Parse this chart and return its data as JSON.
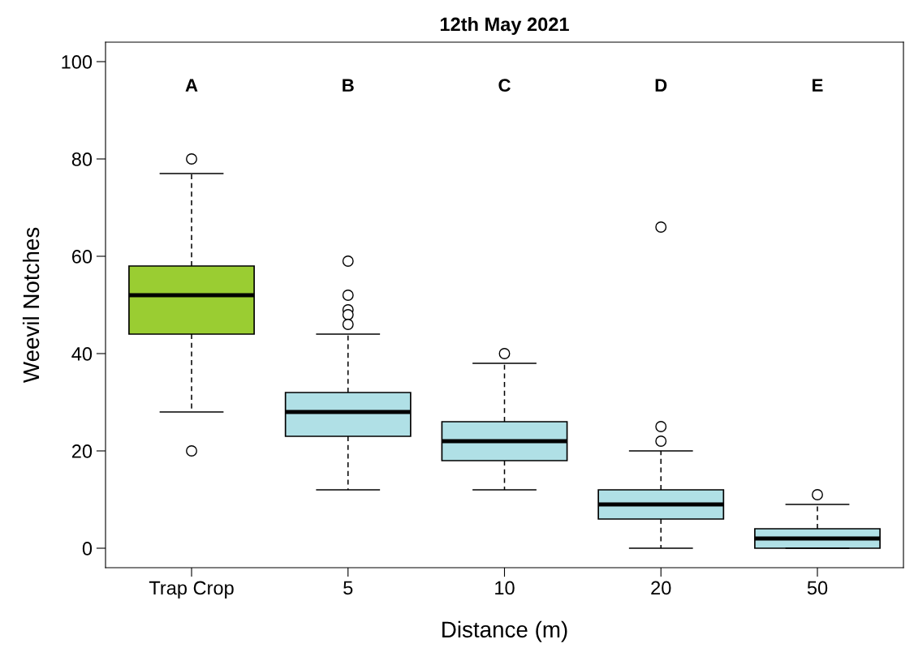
{
  "chart_data": {
    "type": "box",
    "title": "12th May 2021",
    "xlabel": "Distance (m)",
    "ylabel": "Weevil Notches",
    "categories": [
      "Trap Crop",
      "5",
      "10",
      "20",
      "50"
    ],
    "colors": [
      "#9acd32",
      "#b0e0e6",
      "#b0e0e6",
      "#b0e0e6",
      "#b0e0e6"
    ],
    "boxes": [
      {
        "low": 28,
        "q1": 44,
        "median": 52,
        "q3": 58,
        "high": 77,
        "outliers": [
          80,
          20
        ]
      },
      {
        "low": 12,
        "q1": 23,
        "median": 28,
        "q3": 32,
        "high": 44,
        "outliers": [
          59,
          52,
          49,
          48,
          46
        ]
      },
      {
        "low": 12,
        "q1": 18,
        "median": 22,
        "q3": 26,
        "high": 38,
        "outliers": [
          40
        ]
      },
      {
        "low": 0,
        "q1": 6,
        "median": 9,
        "q3": 12,
        "high": 20,
        "outliers": [
          66,
          25,
          22
        ]
      },
      {
        "low": 0,
        "q1": 0,
        "median": 2,
        "q3": 4,
        "high": 9,
        "outliers": [
          11
        ]
      }
    ],
    "ylim": [
      -4,
      104
    ],
    "yticks": [
      0,
      20,
      40,
      60,
      80,
      100
    ],
    "grid": false,
    "annotations": [
      "A",
      "B",
      "C",
      "D",
      "E"
    ]
  }
}
